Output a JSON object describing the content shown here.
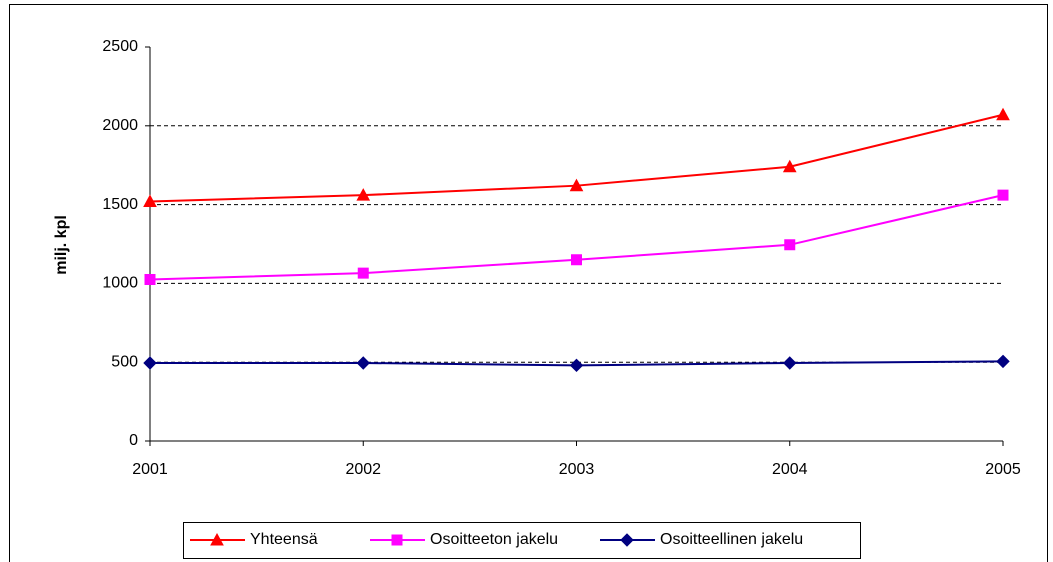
{
  "chart_data": {
    "type": "line",
    "ylabel": "milj. kpl",
    "categories": [
      "2001",
      "2002",
      "2003",
      "2004",
      "2005"
    ],
    "series": [
      {
        "name": "Yhteensä",
        "color": "#ff0000",
        "marker": "triangle",
        "values": [
          1520,
          1560,
          1620,
          1740,
          2070
        ]
      },
      {
        "name": "Osoitteeton jakelu",
        "color": "#ff00ff",
        "marker": "square",
        "values": [
          1025,
          1065,
          1150,
          1245,
          1560
        ]
      },
      {
        "name": "Osoitteellinen jakelu",
        "color": "#000080",
        "marker": "diamond",
        "values": [
          495,
          495,
          480,
          495,
          505
        ]
      }
    ],
    "ylim": [
      0,
      2500
    ],
    "yticks": [
      0,
      500,
      1000,
      1500,
      2000,
      2500
    ],
    "grid": true,
    "legend": "bottom"
  }
}
